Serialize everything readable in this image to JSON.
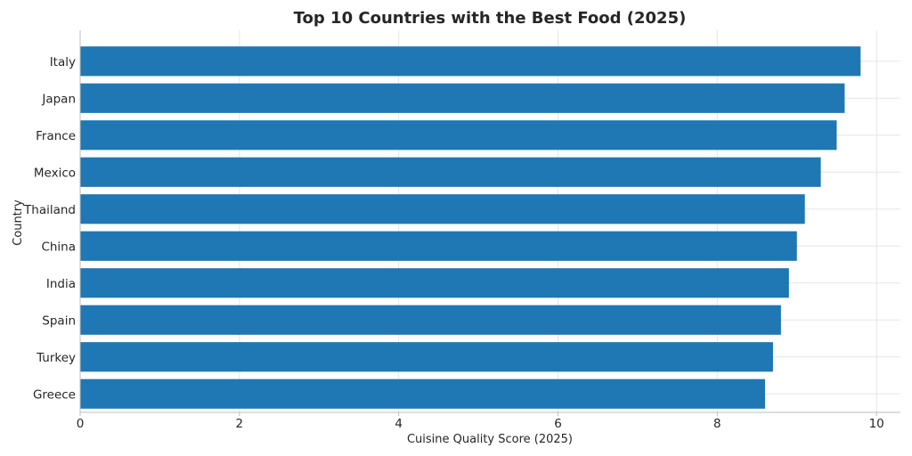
{
  "chart_data": {
    "type": "bar",
    "orientation": "horizontal",
    "title": "Top 10 Countries with the Best Food (2025)",
    "xlabel": "Cuisine Quality Score (2025)",
    "ylabel": "Country",
    "categories": [
      "Italy",
      "Japan",
      "France",
      "Mexico",
      "Thailand",
      "China",
      "India",
      "Spain",
      "Turkey",
      "Greece"
    ],
    "values": [
      9.8,
      9.6,
      9.5,
      9.3,
      9.1,
      9.0,
      8.9,
      8.8,
      8.7,
      8.6
    ],
    "xlim": [
      0,
      10.3
    ],
    "xticks": [
      0,
      2,
      4,
      6,
      8,
      10
    ],
    "xtick_labels": [
      "0",
      "2",
      "4",
      "6",
      "8",
      "10"
    ],
    "grid": true,
    "legend": false,
    "bar_color": "#1f77b4"
  }
}
